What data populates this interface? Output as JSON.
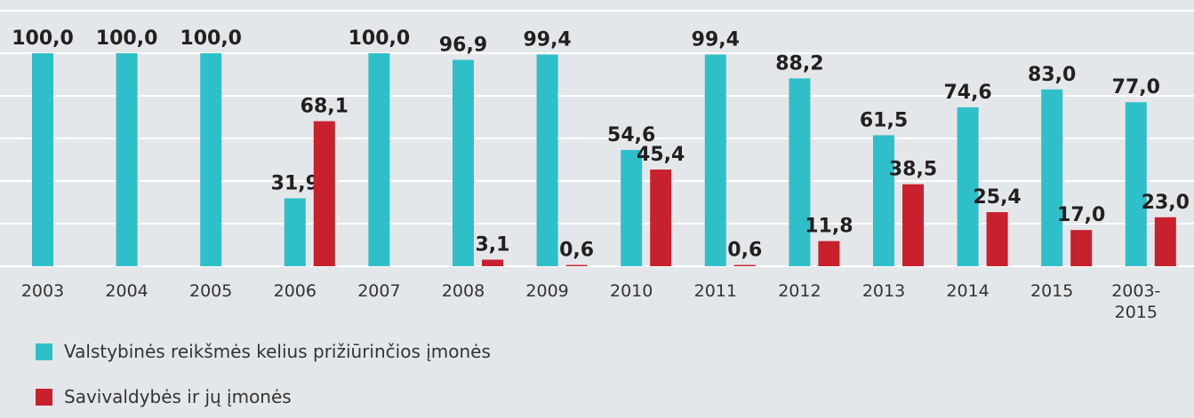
{
  "chart_data": {
    "type": "bar",
    "categories": [
      "2003",
      "2004",
      "2005",
      "2006",
      "2007",
      "2008",
      "2009",
      "2010",
      "2011",
      "2012",
      "2013",
      "2014",
      "2015",
      "2003-2015"
    ],
    "series": [
      {
        "name": "Valstybinės reikšmės kelius prižiūrinčios įmonės",
        "color": "#2fbfc9",
        "values": [
          100,
          100,
          100,
          31.9,
          100,
          96.9,
          99.4,
          54.6,
          99.4,
          88.2,
          61.5,
          74.6,
          83.0,
          77.0
        ],
        "value_labels": [
          "100,0",
          "100,0",
          "100,0",
          "31,9",
          "100,0",
          "96,9",
          "99,4",
          "54,6",
          "99,4",
          "88,2",
          "61,5",
          "74,6",
          "83,0",
          "77,0"
        ]
      },
      {
        "name": "Savivaldybės ir jų įmonės",
        "color": "#c8202d",
        "values": [
          null,
          null,
          null,
          68.1,
          null,
          3.1,
          0.6,
          45.4,
          0.6,
          11.8,
          38.5,
          25.4,
          17.0,
          23.0
        ],
        "value_labels": [
          null,
          null,
          null,
          "68,1",
          null,
          "3,1",
          "0,6",
          "45,4",
          "0,6",
          "11,8",
          "38,5",
          "25,4",
          "17,0",
          "23,0"
        ]
      }
    ],
    "ylim": [
      0,
      120
    ],
    "yticks": [
      0,
      20,
      40,
      60,
      80,
      100,
      120
    ],
    "grid": true,
    "legend": "bottom-left"
  }
}
